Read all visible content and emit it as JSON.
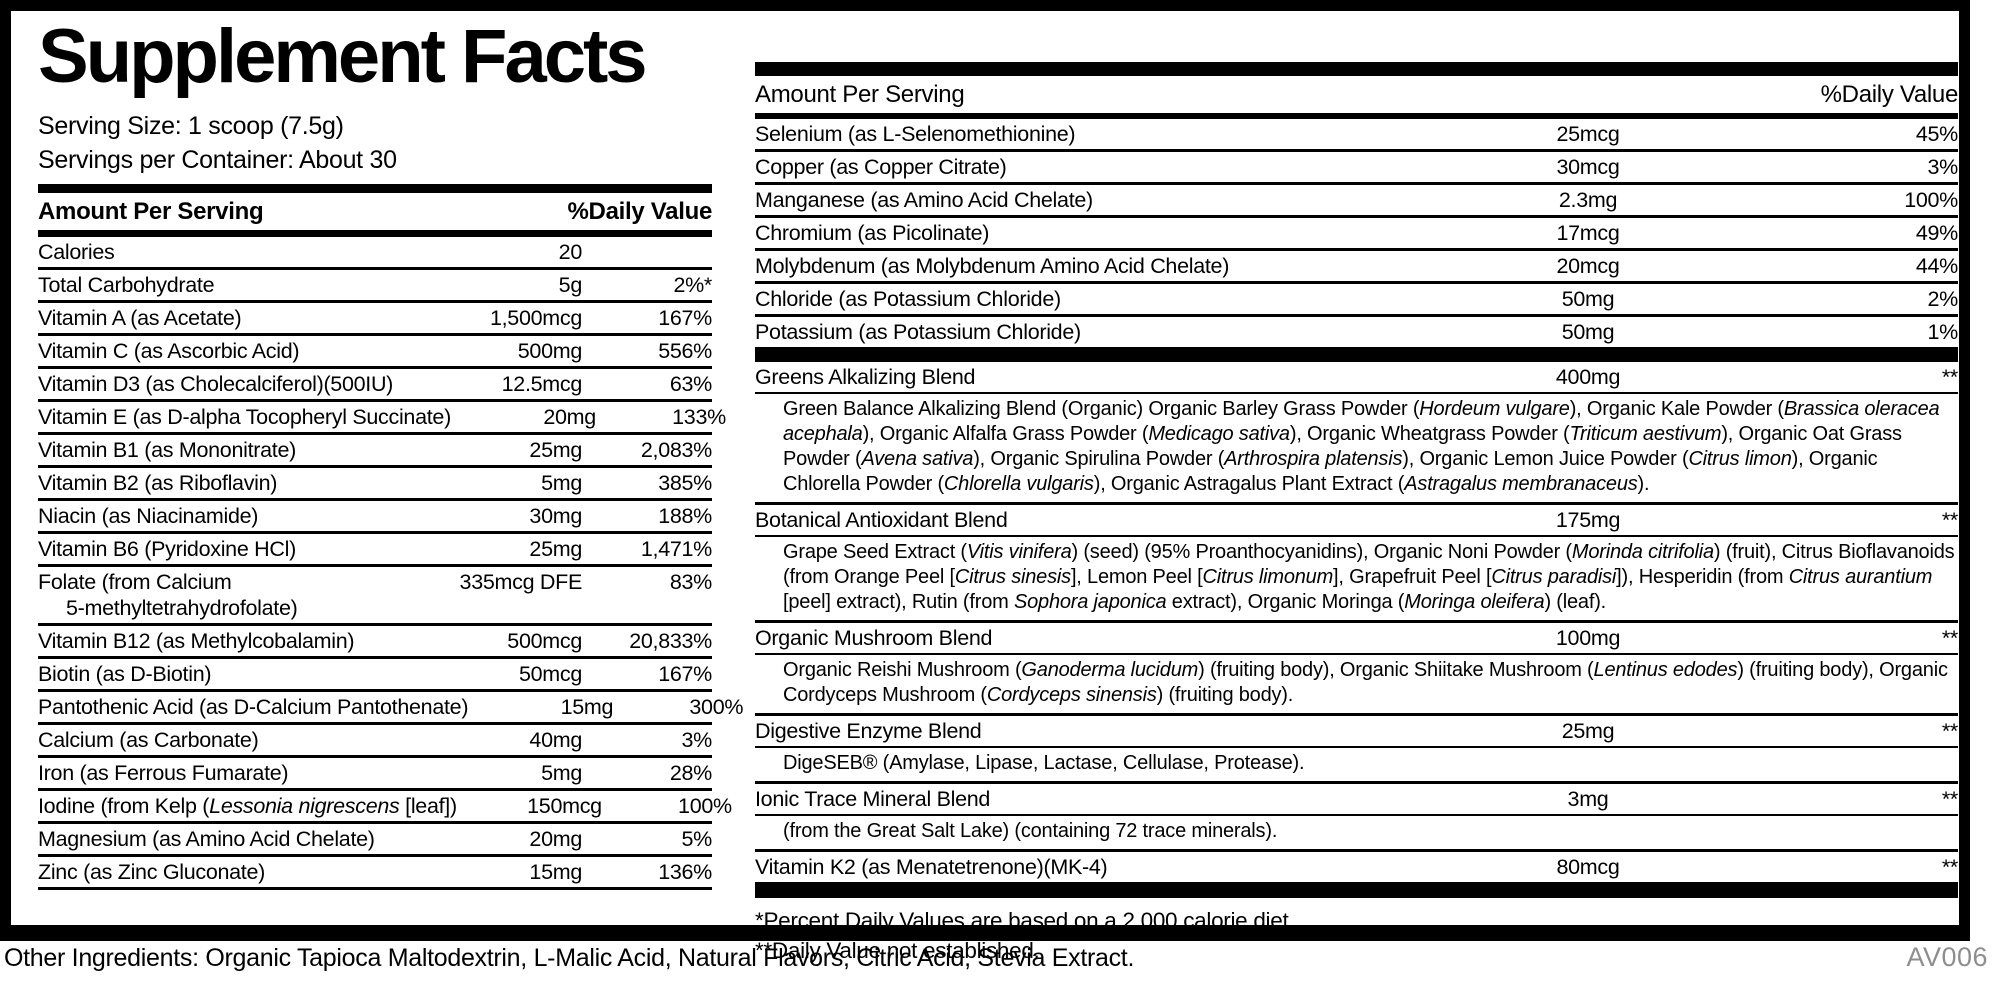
{
  "title": "Supplement Facts",
  "serving": {
    "size": "Serving Size: 1 scoop (7.5g)",
    "per_container": "Servings per Container: About 30"
  },
  "left_table": {
    "header": {
      "amount": "Amount Per Serving",
      "dv": "%Daily Value"
    },
    "rows": [
      {
        "name": "Calories",
        "amount": "20",
        "dv": ""
      },
      {
        "name": "Total Carbohydrate",
        "amount": "5g",
        "dv": "2%*"
      },
      {
        "name": "Vitamin A (as Acetate)",
        "amount": "1,500mcg",
        "dv": "167%"
      },
      {
        "name": "Vitamin C (as Ascorbic Acid)",
        "amount": "500mg",
        "dv": "556%"
      },
      {
        "name": "Vitamin D3 (as Cholecalciferol)(500IU)",
        "amount": "12.5mcg",
        "dv": "63%"
      },
      {
        "name": "Vitamin E (as D-alpha Tocopheryl Succinate)",
        "amount": "20mg",
        "dv": "133%"
      },
      {
        "name": "Vitamin B1 (as Mononitrate)",
        "amount": "25mg",
        "dv": "2,083%"
      },
      {
        "name": "Vitamin B2 (as Riboflavin)",
        "amount": "5mg",
        "dv": "385%"
      },
      {
        "name": "Niacin (as Niacinamide)",
        "amount": "30mg",
        "dv": "188%"
      },
      {
        "name": "Vitamin B6 (Pyridoxine HCl)",
        "amount": "25mg",
        "dv": "1,471%"
      },
      {
        "name": "Folate (from Calcium",
        "name2": "5-methyltetrahydrofolate)",
        "amount": "335mcg DFE",
        "dv": "83%"
      },
      {
        "name": "Vitamin B12 (as Methylcobalamin)",
        "amount": "500mcg",
        "dv": "20,833%"
      },
      {
        "name": "Biotin (as D-Biotin)",
        "amount": "50mcg",
        "dv": "167%"
      },
      {
        "name": "Pantothenic Acid (as D-Calcium Pantothenate)",
        "amount": "15mg",
        "dv": "300%"
      },
      {
        "name": "Calcium (as Carbonate)",
        "amount": "40mg",
        "dv": "3%"
      },
      {
        "name": "Iron (as Ferrous Fumarate)",
        "amount": "5mg",
        "dv": "28%"
      },
      {
        "name": "Iodine (from Kelp (*Lessonia nigrescens* [leaf])",
        "amount": "150mcg",
        "dv": "100%"
      },
      {
        "name": "Magnesium (as Amino Acid Chelate)",
        "amount": "20mg",
        "dv": "5%"
      },
      {
        "name": "Zinc (as Zinc Gluconate)",
        "amount": "15mg",
        "dv": "136%"
      }
    ]
  },
  "right_table": {
    "header": {
      "amount": "Amount Per Serving",
      "dv": "%Daily Value"
    },
    "rows": [
      {
        "name": "Selenium (as L-Selenomethionine)",
        "amount": "25mcg",
        "dv": "45%"
      },
      {
        "name": "Copper (as Copper Citrate)",
        "amount": "30mcg",
        "dv": "3%"
      },
      {
        "name": "Manganese (as Amino Acid Chelate)",
        "amount": "2.3mg",
        "dv": "100%"
      },
      {
        "name": "Chromium (as Picolinate)",
        "amount": "17mcg",
        "dv": "49%"
      },
      {
        "name": "Molybdenum (as Molybdenum Amino Acid Chelate)",
        "amount": "20mcg",
        "dv": "44%"
      },
      {
        "name": "Chloride (as Potassium Chloride)",
        "amount": "50mg",
        "dv": "2%"
      },
      {
        "name": "Potassium (as Potassium Chloride)",
        "amount": "50mg",
        "dv": "1%"
      }
    ],
    "blends": [
      {
        "name": "Greens Alkalizing Blend",
        "amount": "400mg",
        "dv": "**",
        "desc": "Green Balance Alkalizing Blend (Organic) Organic Barley Grass Powder (*Hordeum vulgare*), Organic Kale Powder (*Brassica oleracea acephala*), Organic Alfalfa Grass Powder (*Medicago sativa*), Organic Wheatgrass Powder (*Triticum aestivum*), Organic Oat Grass Powder (*Avena sativa*), Organic Spirulina Powder (*Arthrospira platensis*), Organic Lemon Juice Powder (*Citrus limon*), Organic Chlorella Powder (*Chlorella vulgaris*), Organic Astragalus Plant Extract (*Astragalus membranaceus*)."
      },
      {
        "name": "Botanical Antioxidant Blend",
        "amount": "175mg",
        "dv": "**",
        "desc": "Grape Seed Extract (*Vitis vinifera*) (seed) (95% Proanthocyanidins), Organic Noni Powder (*Morinda citrifolia*) (fruit), Citrus Bioflavanoids (from Orange Peel [*Citrus sinesis*], Lemon Peel [*Citrus limonum*], Grapefruit Peel [*Citrus paradisi*]), Hesperidin (from *Citrus aurantium* [peel] extract), Rutin (from *Sophora japonica* extract), Organic Moringa (*Moringa oleifera*) (leaf)."
      },
      {
        "name": "Organic Mushroom Blend",
        "amount": "100mg",
        "dv": "**",
        "desc": "Organic Reishi Mushroom (*Ganoderma lucidum*) (fruiting body), Organic Shiitake Mushroom (*Lentinus edodes*) (fruiting body), Organic Cordyceps Mushroom (*Cordyceps sinensis*) (fruiting body)."
      },
      {
        "name": "Digestive Enzyme Blend",
        "amount": "25mg",
        "dv": "**",
        "desc": "DigeSEB® (Amylase, Lipase, Lactase, Cellulase, Protease)."
      },
      {
        "name": "Ionic Trace Mineral Blend",
        "amount": "3mg",
        "dv": "**",
        "desc": "(from the Great Salt Lake) (containing 72 trace minerals)."
      },
      {
        "name": "Vitamin K2 (as Menatetrenone)(MK-4)",
        "amount": "80mcg",
        "dv": "**",
        "desc": ""
      }
    ],
    "footnotes": [
      "*Percent Daily Values are based on a 2,000 calorie diet.",
      "**Daily Value not established."
    ]
  },
  "footer": {
    "other_ingredients": "Other Ingredients: Organic Tapioca Maltodextrin, L-Malic Acid, Natural Flavors, Citric Acid, Stevia Extract.",
    "code": "AV006"
  },
  "colors": {
    "ink": "#000000",
    "code_gray": "#8e8e8e",
    "background": "#ffffff"
  }
}
